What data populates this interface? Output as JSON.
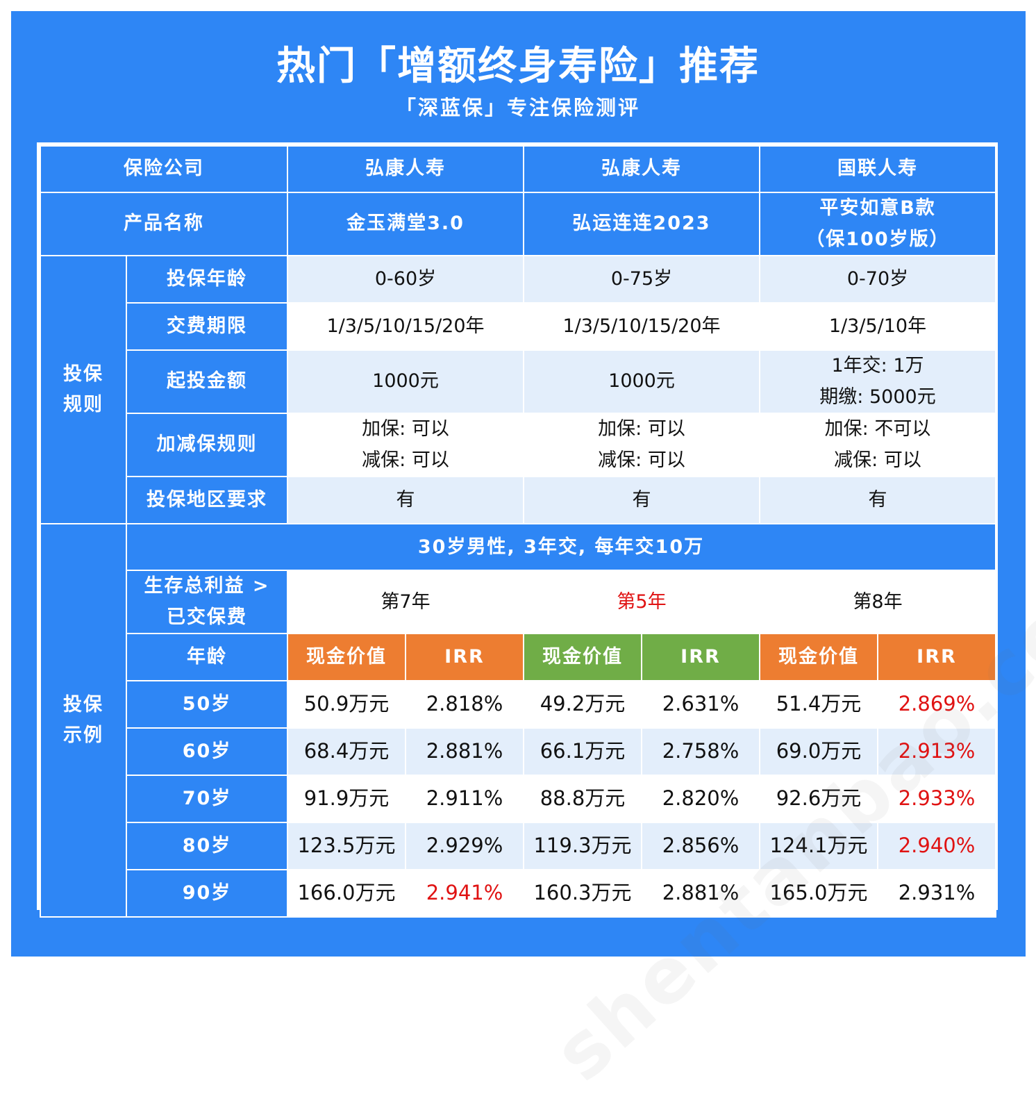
{
  "header": {
    "title": "热门「增额终身寿险」推荐",
    "subtitle": "「深蓝保」专注保险测评"
  },
  "watermark": "shentanbao.com | 独立 | 专业 | 诚信",
  "colors": {
    "header_blue": "#2e86f5",
    "light_row": "#e3eefb",
    "orange": "#ed7d31",
    "green": "#70ad47",
    "highlight_red": "#e01212"
  },
  "rows": {
    "company": {
      "label": "保险公司",
      "values": [
        "弘康人寿",
        "弘康人寿",
        "国联人寿"
      ]
    },
    "product": {
      "label": "产品名称",
      "values": [
        "金玉满堂3.0",
        "弘运连连2023",
        "平安如意B款",
        "（保100岁版）"
      ]
    }
  },
  "rules": {
    "group_label": [
      "投保",
      "规则"
    ],
    "age": {
      "label": "投保年龄",
      "values": [
        "0-60岁",
        "0-75岁",
        "0-70岁"
      ]
    },
    "payment": {
      "label": "交费期限",
      "values": [
        "1/3/5/10/15/20年",
        "1/3/5/10/15/20年",
        "1/3/5/10年"
      ]
    },
    "min_amount": {
      "label": "起投金额",
      "values": [
        "1000元",
        "1000元",
        "1年交: 1万",
        "期缴: 5000元"
      ]
    },
    "adjust": {
      "label": "加减保规则",
      "values": [
        "加保: 可以",
        "减保: 可以",
        "加保: 可以",
        "减保: 可以",
        "加保: 不可以",
        "减保: 可以"
      ]
    },
    "region": {
      "label": "投保地区要求",
      "values": [
        "有",
        "有",
        "有"
      ]
    }
  },
  "example": {
    "group_label": [
      "投保",
      "示例"
    ],
    "scenario": "30岁男性, 3年交, 每年交10万",
    "breakeven": {
      "label": [
        "生存总利益 >",
        "已交保费"
      ],
      "values": [
        "第7年",
        "第5年",
        "第8年"
      ]
    },
    "age_header": "年龄",
    "cash_value_header": "现金价值",
    "irr_header": "IRR",
    "rows": [
      {
        "age": "50岁",
        "cells": [
          "50.9万元",
          "2.818%",
          "49.2万元",
          "2.631%",
          "51.4万元",
          "2.869%"
        ]
      },
      {
        "age": "60岁",
        "cells": [
          "68.4万元",
          "2.881%",
          "66.1万元",
          "2.758%",
          "69.0万元",
          "2.913%"
        ]
      },
      {
        "age": "70岁",
        "cells": [
          "91.9万元",
          "2.911%",
          "88.8万元",
          "2.820%",
          "92.6万元",
          "2.933%"
        ]
      },
      {
        "age": "80岁",
        "cells": [
          "123.5万元",
          "2.929%",
          "119.3万元",
          "2.856%",
          "124.1万元",
          "2.940%"
        ]
      },
      {
        "age": "90岁",
        "cells": [
          "166.0万元",
          "2.941%",
          "160.3万元",
          "2.881%",
          "165.0万元",
          "2.931%"
        ]
      }
    ]
  }
}
